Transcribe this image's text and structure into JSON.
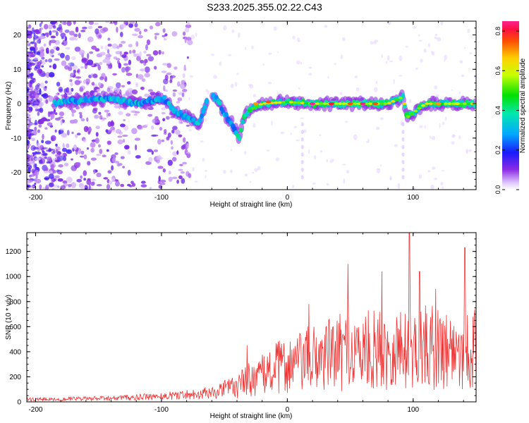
{
  "title": "S233.2025.355.02.22.C43",
  "chart_data": [
    {
      "type": "heatmap",
      "title": "S233.2025.355.02.22.C43",
      "xlabel": "Height of straight line (km)",
      "ylabel": "Frequency (Hz)",
      "xlim": [
        -207,
        150
      ],
      "ylim": [
        -25,
        24
      ],
      "xticks": [
        -200,
        -100,
        0,
        100
      ],
      "xtick_labels": [
        "-200",
        "-100",
        "0",
        "100"
      ],
      "yticks": [
        -20,
        -10,
        0,
        10,
        20
      ],
      "ytick_labels": [
        "-20",
        "-10",
        "0",
        "10",
        "20"
      ],
      "colorbar": {
        "label": "Normalized spectral amplitude",
        "range": [
          0,
          0.85
        ],
        "ticks": [
          0.0,
          0.2,
          0.4,
          0.6,
          0.8
        ],
        "tick_labels": [
          "0.0",
          "0.2",
          "0.4",
          "0.6",
          "0.8"
        ]
      },
      "ridge": [
        {
          "x": -180,
          "y": 0.5
        },
        {
          "x": -160,
          "y": 1
        },
        {
          "x": -140,
          "y": 1.5
        },
        {
          "x": -120,
          "y": 0
        },
        {
          "x": -105,
          "y": 1
        },
        {
          "x": -98,
          "y": 1.5
        },
        {
          "x": -90,
          "y": -2
        },
        {
          "x": -80,
          "y": -4
        },
        {
          "x": -70,
          "y": -6
        },
        {
          "x": -62,
          "y": 3
        },
        {
          "x": -55,
          "y": 1
        },
        {
          "x": -50,
          "y": -3
        },
        {
          "x": -45,
          "y": -5
        },
        {
          "x": -38,
          "y": -10
        },
        {
          "x": -35,
          "y": -4
        },
        {
          "x": -30,
          "y": -2
        },
        {
          "x": -20,
          "y": 0
        },
        {
          "x": 0,
          "y": 0.5
        },
        {
          "x": 20,
          "y": 0
        },
        {
          "x": 40,
          "y": 0
        },
        {
          "x": 60,
          "y": 0
        },
        {
          "x": 80,
          "y": 0
        },
        {
          "x": 92,
          "y": 2
        },
        {
          "x": 95,
          "y": -4
        },
        {
          "x": 110,
          "y": 0
        },
        {
          "x": 130,
          "y": 0
        },
        {
          "x": 150,
          "y": 0
        }
      ],
      "hotspots": [
        {
          "x": 20,
          "y": 0,
          "amp": 0.85
        },
        {
          "x": 35,
          "y": 0,
          "amp": 0.8
        },
        {
          "x": 50,
          "y": 0,
          "amp": 0.75
        },
        {
          "x": 60,
          "y": 0,
          "amp": 0.85
        },
        {
          "x": 70,
          "y": 0,
          "amp": 0.75
        },
        {
          "x": -25,
          "y": 0,
          "amp": 0.7
        },
        {
          "x": -15,
          "y": 0.5,
          "amp": 0.75
        },
        {
          "x": 120,
          "y": 0,
          "amp": 0.7
        },
        {
          "x": 135,
          "y": 0,
          "amp": 0.6
        }
      ]
    },
    {
      "type": "line",
      "xlabel": "Height of straight line (km)",
      "ylabel": "SNR (10 * v/v)",
      "xlim": [
        -207,
        150
      ],
      "ylim": [
        0,
        1350
      ],
      "xticks": [
        -200,
        -100,
        0,
        100
      ],
      "xtick_labels": [
        "-200",
        "-100",
        "0",
        "100"
      ],
      "yticks": [
        0,
        200,
        400,
        600,
        800,
        1000,
        1200
      ],
      "ytick_labels": [
        "0",
        "200",
        "400",
        "600",
        "800",
        "1000",
        "1200"
      ],
      "series": [
        {
          "name": "SNR",
          "color": "#ee3333",
          "envelope_x": [
            -207,
            -150,
            -110,
            -80,
            -60,
            -40,
            -30,
            -20,
            -10,
            0,
            10,
            20,
            40,
            60,
            80,
            100,
            120,
            150
          ],
          "envelope_y": [
            30,
            40,
            60,
            90,
            110,
            180,
            260,
            300,
            380,
            420,
            450,
            500,
            560,
            580,
            600,
            620,
            620,
            600
          ],
          "peaks": [
            {
              "x": -32,
              "y": 450
            },
            {
              "x": 17,
              "y": 780
            },
            {
              "x": 48,
              "y": 1100
            },
            {
              "x": 75,
              "y": 1040
            },
            {
              "x": 97,
              "y": 1350
            },
            {
              "x": 105,
              "y": 1040
            },
            {
              "x": 141,
              "y": 1230
            },
            {
              "x": 118,
              "y": 900
            }
          ]
        }
      ]
    }
  ]
}
